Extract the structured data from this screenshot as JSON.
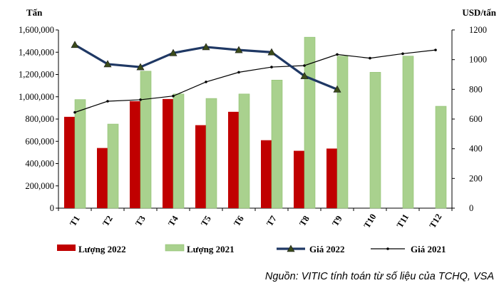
{
  "chart_data": {
    "type": "bar",
    "categories": [
      "T1",
      "T2",
      "T3",
      "T4",
      "T5",
      "T6",
      "T7",
      "T8",
      "T9",
      "T10",
      "T11",
      "T12"
    ],
    "left_axis": {
      "unit": "Tấn",
      "ylim": [
        0,
        1600000
      ],
      "step": 200000
    },
    "right_axis": {
      "unit": "USD/tấn",
      "ylim": [
        0,
        1200
      ],
      "step": 200
    },
    "series": [
      {
        "name": "Lượng 2022",
        "kind": "bar",
        "axis": "left",
        "color": "#c00000",
        "values": [
          820000,
          540000,
          960000,
          980000,
          745000,
          865000,
          610000,
          515000,
          535000,
          null,
          null,
          null
        ]
      },
      {
        "name": "Lượng 2021",
        "kind": "bar",
        "axis": "left",
        "color": "#a9d18e",
        "values": [
          975000,
          755000,
          1230000,
          1025000,
          985000,
          1025000,
          1150000,
          1535000,
          1365000,
          1220000,
          1365000,
          915000
        ]
      },
      {
        "name": "Giá 2022",
        "kind": "line",
        "axis": "right",
        "color": "#1f3864",
        "values": [
          1100,
          970,
          950,
          1045,
          1085,
          1065,
          1050,
          890,
          800,
          null,
          null,
          null
        ]
      },
      {
        "name": "Giá 2021",
        "kind": "line",
        "axis": "right",
        "color": "#000000",
        "values": [
          645,
          720,
          730,
          755,
          850,
          915,
          950,
          960,
          1035,
          1010,
          1040,
          1065
        ]
      }
    ],
    "legend_position": "bottom",
    "grid": false
  },
  "source_note": "Nguồn: VITIC tính toán từ số liệu của TCHQ, VSA"
}
